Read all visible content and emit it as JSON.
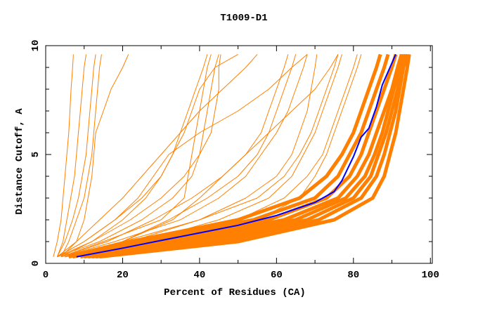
{
  "chart_data": {
    "type": "line",
    "title": "T1009-D1",
    "xlabel": "Percent of Residues (CA)",
    "ylabel": "Distance Cutoff, A",
    "xlim": [
      0,
      100.5
    ],
    "ylim": [
      0,
      10
    ],
    "x_ticks": [
      0,
      20,
      40,
      60,
      80,
      100
    ],
    "y_ticks": [
      0,
      5,
      10
    ],
    "grid": false,
    "legend": "none",
    "colors": {
      "models": "#ff8000",
      "highlight": "#0000ff"
    },
    "y_levels": [
      0.3,
      1,
      2,
      3,
      4,
      5,
      6,
      7,
      8,
      9,
      9.6
    ],
    "model_curves_x_at_y_levels": [
      [
        2,
        3,
        4,
        4.5,
        5,
        5.5,
        6,
        6.3,
        6.6,
        7,
        7.2
      ],
      [
        3,
        4.5,
        5.5,
        6.5,
        7.5,
        8,
        8.5,
        9,
        9.5,
        10,
        10.5
      ],
      [
        3,
        5,
        7,
        8.5,
        9.5,
        10.5,
        11,
        11.5,
        12,
        12.5,
        13
      ],
      [
        4,
        6,
        8,
        10,
        11,
        12,
        12.5,
        13,
        13.5,
        14,
        14.5
      ],
      [
        4,
        8,
        10,
        11,
        12,
        12.5,
        13,
        15,
        17,
        20,
        21.5
      ],
      [
        3,
        10,
        18,
        25,
        30,
        33,
        35,
        37,
        39,
        41,
        42
      ],
      [
        3,
        12,
        22,
        30,
        36,
        40,
        43,
        44,
        45,
        45,
        45.5
      ],
      [
        3,
        14,
        25,
        33,
        38,
        40,
        41,
        42,
        43,
        44,
        45
      ],
      [
        4,
        15,
        30,
        36,
        37,
        38,
        39,
        40,
        41,
        42,
        43
      ],
      [
        4,
        18,
        35,
        45,
        52,
        56,
        60,
        63,
        65,
        67,
        68
      ],
      [
        4,
        20,
        32,
        42,
        50,
        55,
        58,
        60,
        62,
        64,
        65
      ],
      [
        4,
        16,
        28,
        38,
        46,
        52,
        56,
        58,
        60,
        62,
        63
      ],
      [
        5,
        22,
        40,
        52,
        60,
        64,
        66,
        68,
        69,
        70,
        70.5
      ],
      [
        5,
        25,
        45,
        58,
        64,
        67,
        70,
        72,
        74,
        76,
        77
      ],
      [
        5,
        20,
        40,
        55,
        62,
        66,
        69,
        71,
        73,
        75,
        76
      ],
      [
        5,
        30,
        50,
        62,
        68,
        72,
        74,
        76,
        78,
        80,
        81
      ],
      [
        6,
        30,
        55,
        66,
        70,
        73,
        75,
        77,
        79,
        81,
        82
      ],
      [
        4,
        12,
        20,
        26,
        30,
        33,
        36,
        38,
        40,
        44,
        50
      ],
      [
        3,
        8,
        14,
        20,
        25,
        30,
        35,
        40,
        46,
        52,
        55
      ],
      [
        3,
        10,
        18,
        24,
        28,
        32,
        40,
        50,
        58,
        64,
        68
      ],
      [
        5,
        20,
        33,
        40,
        46,
        52,
        58,
        64,
        70,
        74,
        76
      ],
      [
        6,
        22,
        50,
        66,
        73,
        77,
        80,
        82,
        84,
        86,
        87
      ],
      [
        7,
        26,
        54,
        70,
        76,
        79,
        82,
        84,
        86,
        88,
        89
      ],
      [
        9,
        30,
        58,
        73,
        79,
        82,
        84,
        86,
        88,
        90,
        91
      ],
      [
        10,
        34,
        62,
        76,
        81,
        84,
        86,
        88,
        90,
        91.5,
        92.5
      ],
      [
        11,
        38,
        65,
        78,
        83,
        85.5,
        87.5,
        89,
        90.5,
        92,
        93
      ],
      [
        12,
        42,
        68,
        80,
        84.5,
        86.5,
        88.5,
        90,
        91.5,
        92.5,
        93.5
      ],
      [
        13,
        46,
        71,
        82,
        86,
        88,
        89.5,
        91,
        92,
        93,
        94
      ],
      [
        14,
        50,
        75,
        85,
        88,
        89.5,
        91,
        92,
        93,
        94,
        94.5
      ]
    ],
    "highlight_curve": [
      [
        8,
        0.3
      ],
      [
        20,
        0.7
      ],
      [
        30,
        1.05
      ],
      [
        40,
        1.4
      ],
      [
        50,
        1.75
      ],
      [
        60,
        2.2
      ],
      [
        65,
        2.5
      ],
      [
        70,
        2.8
      ],
      [
        75,
        3.3
      ],
      [
        77,
        3.8
      ],
      [
        80,
        4.9
      ],
      [
        82,
        5.8
      ],
      [
        84,
        6.2
      ],
      [
        86,
        7.2
      ],
      [
        87.5,
        8.2
      ],
      [
        89,
        8.8
      ],
      [
        91,
        9.6
      ]
    ]
  }
}
